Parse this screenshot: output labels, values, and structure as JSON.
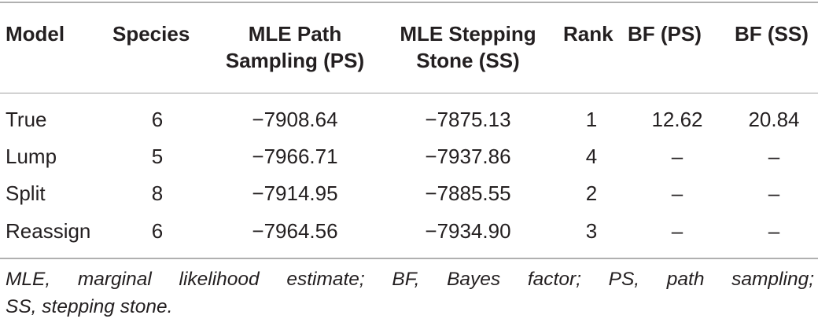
{
  "table": {
    "headers": [
      "Model",
      "Species",
      "MLE Path",
      "Sampling (PS)",
      "MLE Stepping",
      "Stone (SS)",
      "Rank",
      "BF (PS)",
      "BF (SS)"
    ],
    "rows": [
      {
        "model": "True",
        "species": "6",
        "mle_ps": "−7908.64",
        "mle_ss": "−7875.13",
        "rank": "1",
        "bf_ps": "12.62",
        "bf_ss": "20.84"
      },
      {
        "model": "Lump",
        "species": "5",
        "mle_ps": "−7966.71",
        "mle_ss": "−7937.86",
        "rank": "4",
        "bf_ps": "–",
        "bf_ss": "–"
      },
      {
        "model": "Split",
        "species": "8",
        "mle_ps": "−7914.95",
        "mle_ss": "−7885.55",
        "rank": "2",
        "bf_ps": "–",
        "bf_ss": "–"
      },
      {
        "model": "Reassign",
        "species": "6",
        "mle_ps": "−7964.56",
        "mle_ss": "−7934.90",
        "rank": "3",
        "bf_ps": "–",
        "bf_ss": "–"
      }
    ]
  },
  "footnote": {
    "line1": "MLE, marginal likelihood estimate; BF, Bayes factor; PS, path sampling;",
    "line2": "SS, stepping stone."
  }
}
